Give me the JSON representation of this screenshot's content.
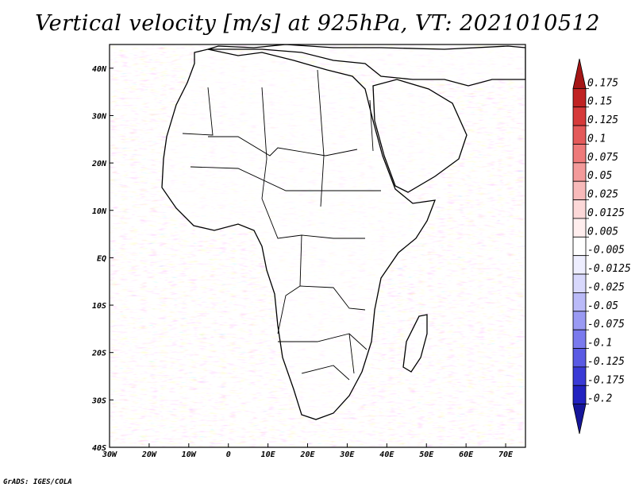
{
  "title": "Vertical velocity [m/s] at 925hPa, VT: 2021010512",
  "footer": "GrADS: IGES/COLA",
  "map": {
    "region": "Africa",
    "lon_range": [
      -30,
      75
    ],
    "lat_range": [
      -40,
      45
    ],
    "x_ticks": [
      "30W",
      "20W",
      "10W",
      "0",
      "10E",
      "20E",
      "30E",
      "40E",
      "50E",
      "60E",
      "70E"
    ],
    "x_tick_values": [
      -30,
      -20,
      -10,
      0,
      10,
      20,
      30,
      40,
      50,
      60,
      70
    ],
    "y_ticks": [
      "40N",
      "30N",
      "20N",
      "10N",
      "EQ",
      "10S",
      "20S",
      "30S",
      "40S"
    ],
    "y_tick_values": [
      40,
      30,
      20,
      10,
      0,
      -10,
      -20,
      -30,
      -40
    ]
  },
  "colorbar": {
    "labels": [
      "0.175",
      "0.15",
      "0.125",
      "0.1",
      "0.075",
      "0.05",
      "0.025",
      "0.0125",
      "0.005",
      "-0.005",
      "-0.0125",
      "-0.025",
      "-0.05",
      "-0.075",
      "-0.1",
      "-0.125",
      "-0.175",
      "-0.2"
    ],
    "colors": [
      "#a51616",
      "#c02222",
      "#d63a3a",
      "#e45a5a",
      "#ee7a7a",
      "#f39a9a",
      "#f8baba",
      "#fcd8d8",
      "#ffeeee",
      "#ffffff",
      "#eeeeff",
      "#d8d8fc",
      "#babaf8",
      "#9a9af3",
      "#7a7aee",
      "#5a5ae4",
      "#3a3ad6",
      "#2222c0",
      "#16169a"
    ],
    "unit": "m/s"
  }
}
